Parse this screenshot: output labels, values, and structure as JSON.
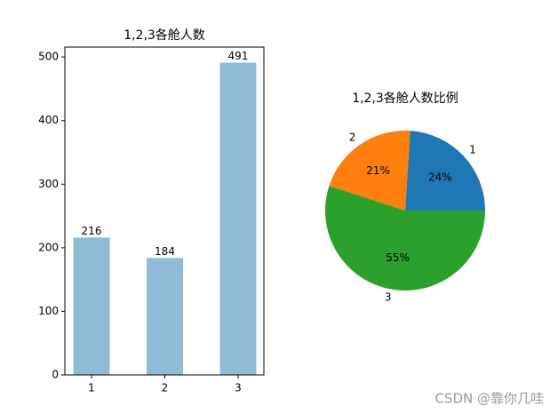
{
  "chart_data": [
    {
      "type": "bar",
      "title": "1,2,3各舱人数",
      "categories": [
        "1",
        "2",
        "3"
      ],
      "values": [
        216,
        184,
        491
      ],
      "color": "#8fbbd9",
      "ylim": [
        0,
        515.55
      ],
      "yticks": [
        0,
        100,
        200,
        300,
        400,
        500
      ]
    },
    {
      "type": "pie",
      "title": "1,2,3各舱人数比例",
      "categories": [
        "1",
        "2",
        "3"
      ],
      "values": [
        24,
        21,
        55
      ],
      "value_labels": [
        "24%",
        "21%",
        "55%"
      ],
      "colors": [
        "#1f77b4",
        "#ff7f0e",
        "#2ca02c"
      ]
    }
  ],
  "watermark": "CSDN @靠你几哇"
}
